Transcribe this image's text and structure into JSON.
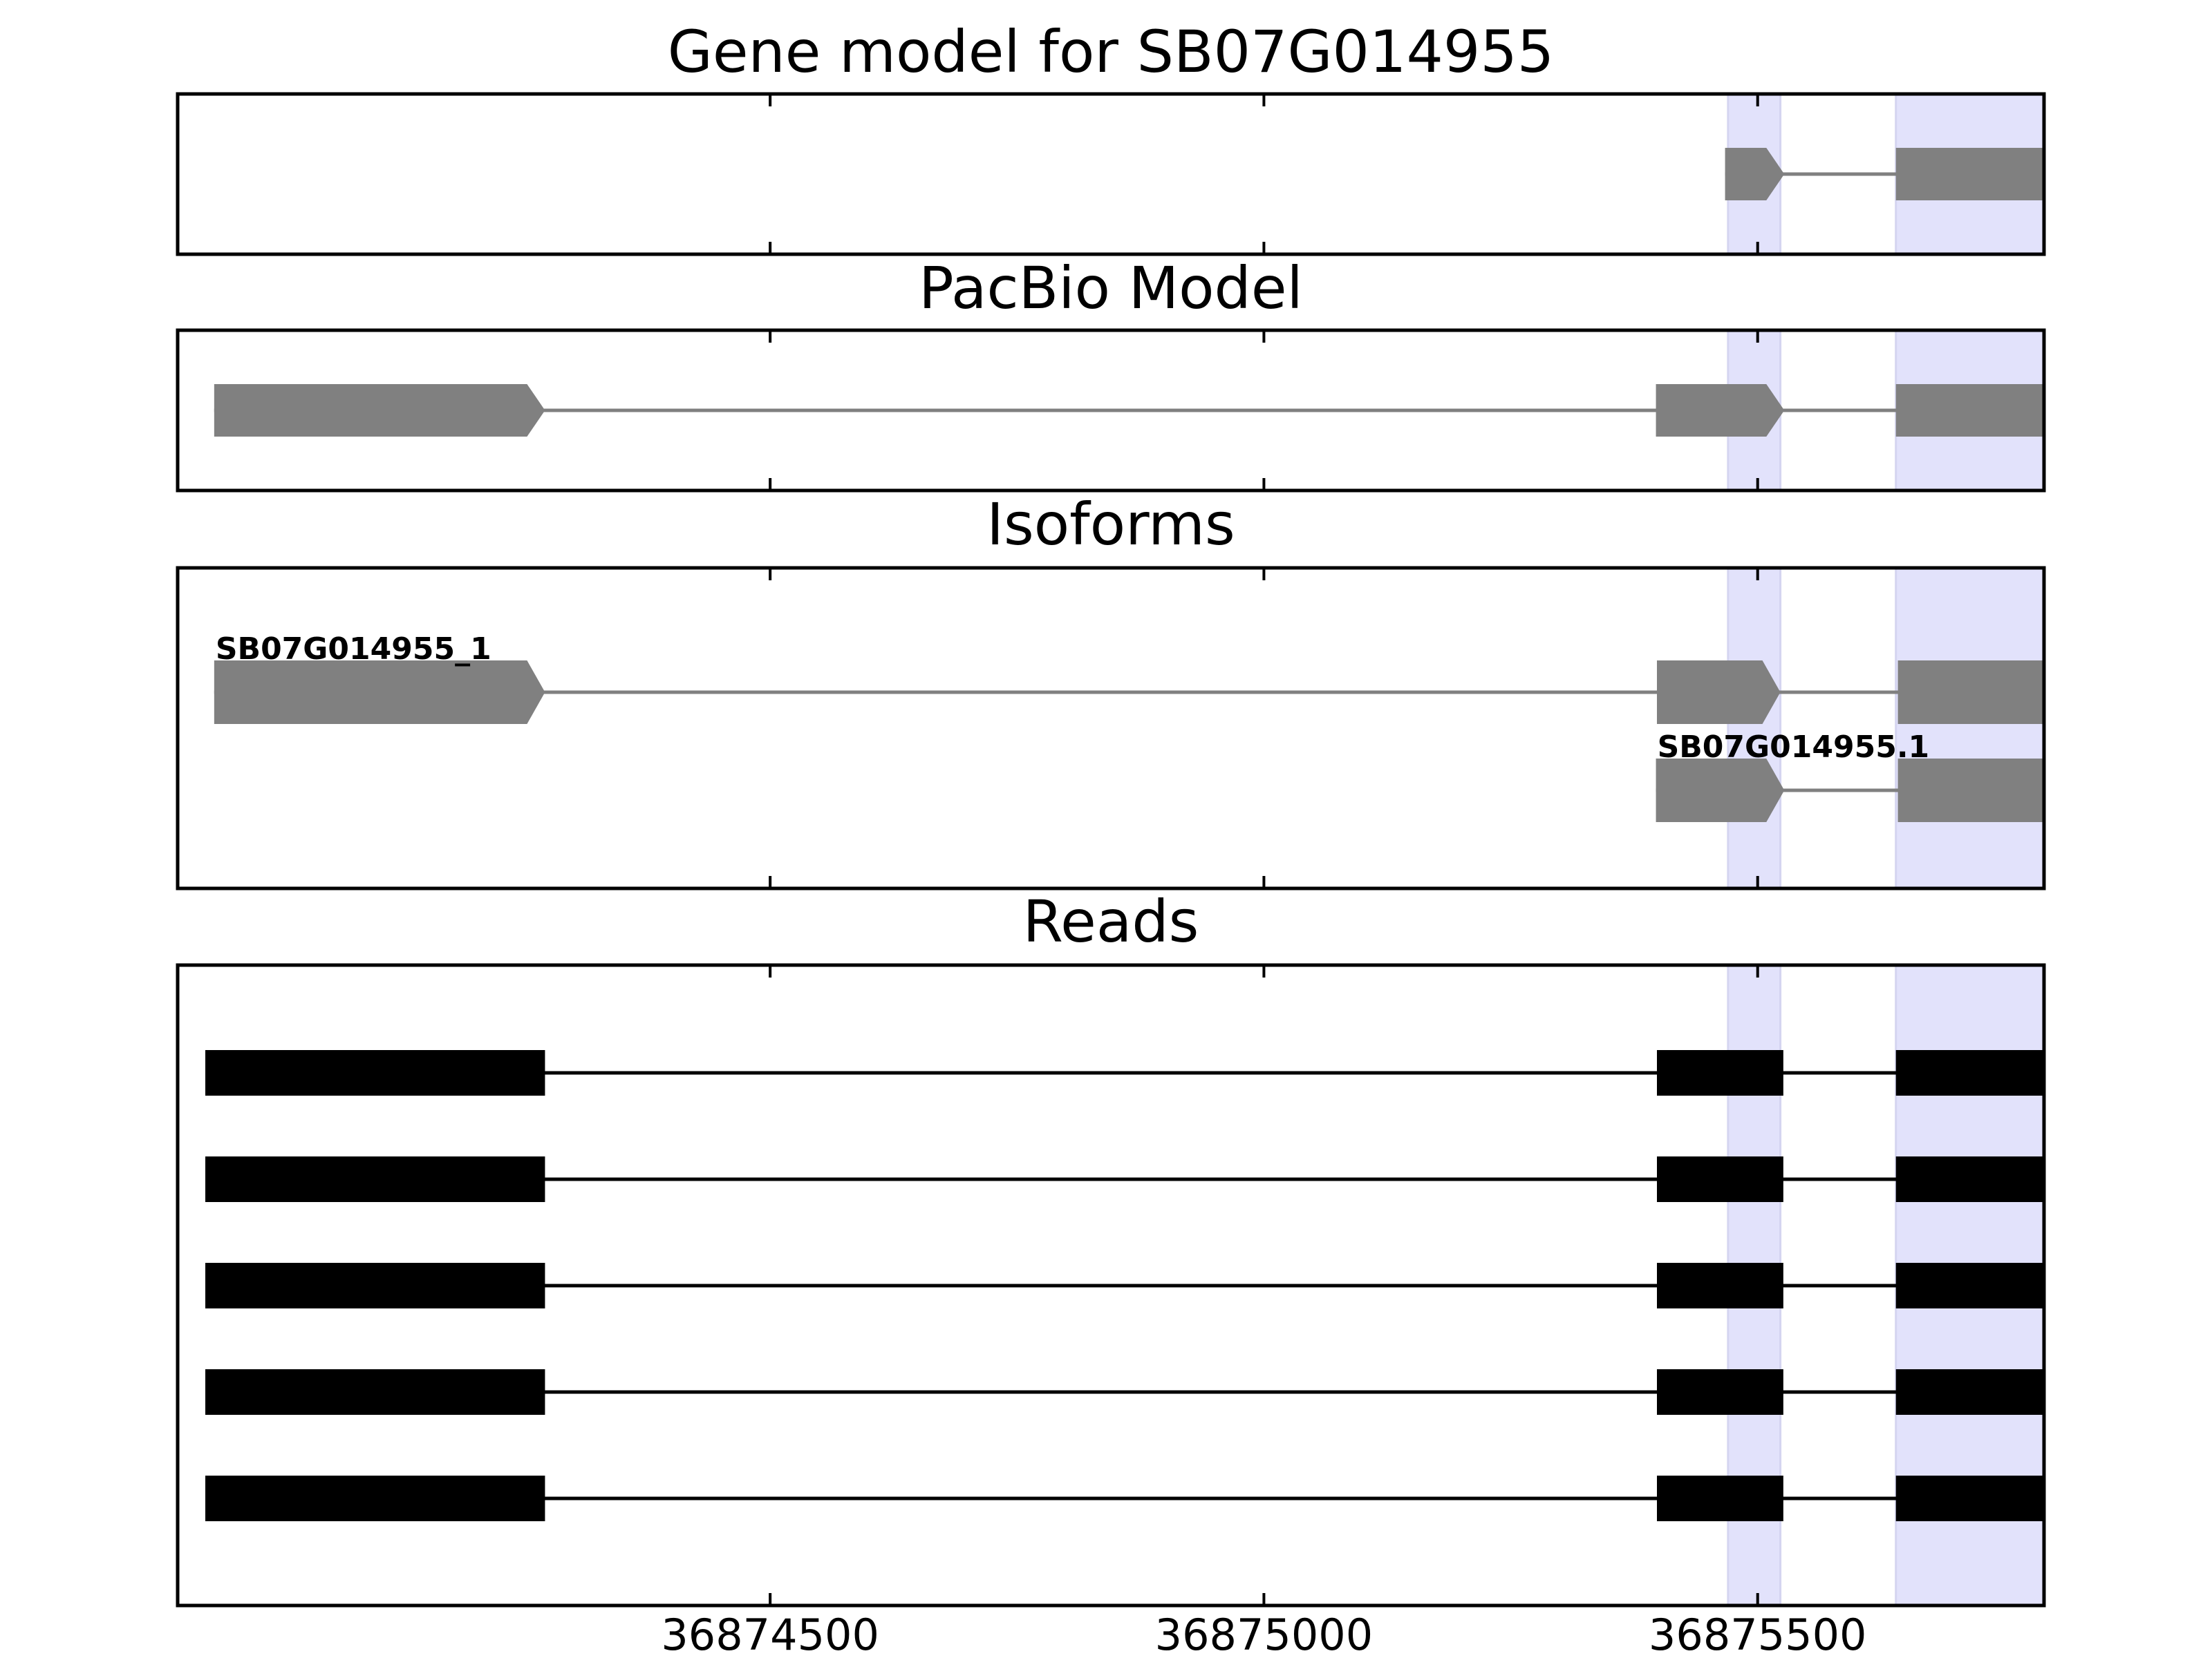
{
  "chart_data": {
    "type": "gene-track",
    "x_axis": {
      "xlim": [
        36873900,
        36875790
      ],
      "ticks": [
        36874500,
        36875000,
        36875500
      ],
      "tick_labels": [
        "36874500",
        "36875000",
        "36875500"
      ]
    },
    "highlight_regions": [
      {
        "start": 36875470,
        "end": 36875523
      },
      {
        "start": 36875640,
        "end": 36875866
      }
    ],
    "colors": {
      "highlight": "#e2e2fb",
      "gene_feature": "#808080",
      "read_feature": "#000000",
      "frame": "#000000"
    },
    "panels": [
      {
        "title": "Gene model for SB07G014955",
        "kind": "model",
        "tracks": [
          {
            "label": "",
            "strand": "+",
            "exons": [
              [
                36875467,
                36875527
              ],
              [
                36875640,
                36875875
              ]
            ]
          }
        ]
      },
      {
        "title": "PacBio Model",
        "kind": "model",
        "tracks": [
          {
            "label": "",
            "strand": "+",
            "exons": [
              [
                36873937,
                36874272
              ],
              [
                36875397,
                36875527
              ],
              [
                36875640,
                36875926
              ]
            ]
          }
        ]
      },
      {
        "title": "Isoforms",
        "kind": "model",
        "tracks": [
          {
            "label": "SB07G014955_1",
            "strand": "+",
            "exons": [
              [
                36873937,
                36874272
              ],
              [
                36875398,
                36875523
              ],
              [
                36875642,
                36875924
              ]
            ]
          },
          {
            "label": "SB07G014955.1",
            "strand": "+",
            "exons": [
              [
                36875397,
                36875527
              ],
              [
                36875642,
                36875924
              ]
            ]
          }
        ]
      },
      {
        "title": "Reads",
        "kind": "reads",
        "tracks": [
          {
            "label": "",
            "exons": [
              [
                36873928,
                36874272
              ],
              [
                36875398,
                36875526
              ],
              [
                36875640,
                36875925
              ]
            ]
          },
          {
            "label": "",
            "exons": [
              [
                36873928,
                36874272
              ],
              [
                36875398,
                36875526
              ],
              [
                36875640,
                36875930
              ]
            ]
          },
          {
            "label": "",
            "exons": [
              [
                36873928,
                36874272
              ],
              [
                36875398,
                36875526
              ],
              [
                36875640,
                36875980
              ]
            ]
          },
          {
            "label": "",
            "exons": [
              [
                36873928,
                36874272
              ],
              [
                36875398,
                36875526
              ],
              [
                36875640,
                36875980
              ]
            ]
          },
          {
            "label": "",
            "exons": [
              [
                36873928,
                36874272
              ],
              [
                36875398,
                36875526
              ],
              [
                36875640,
                36875980
              ]
            ]
          }
        ]
      }
    ]
  }
}
